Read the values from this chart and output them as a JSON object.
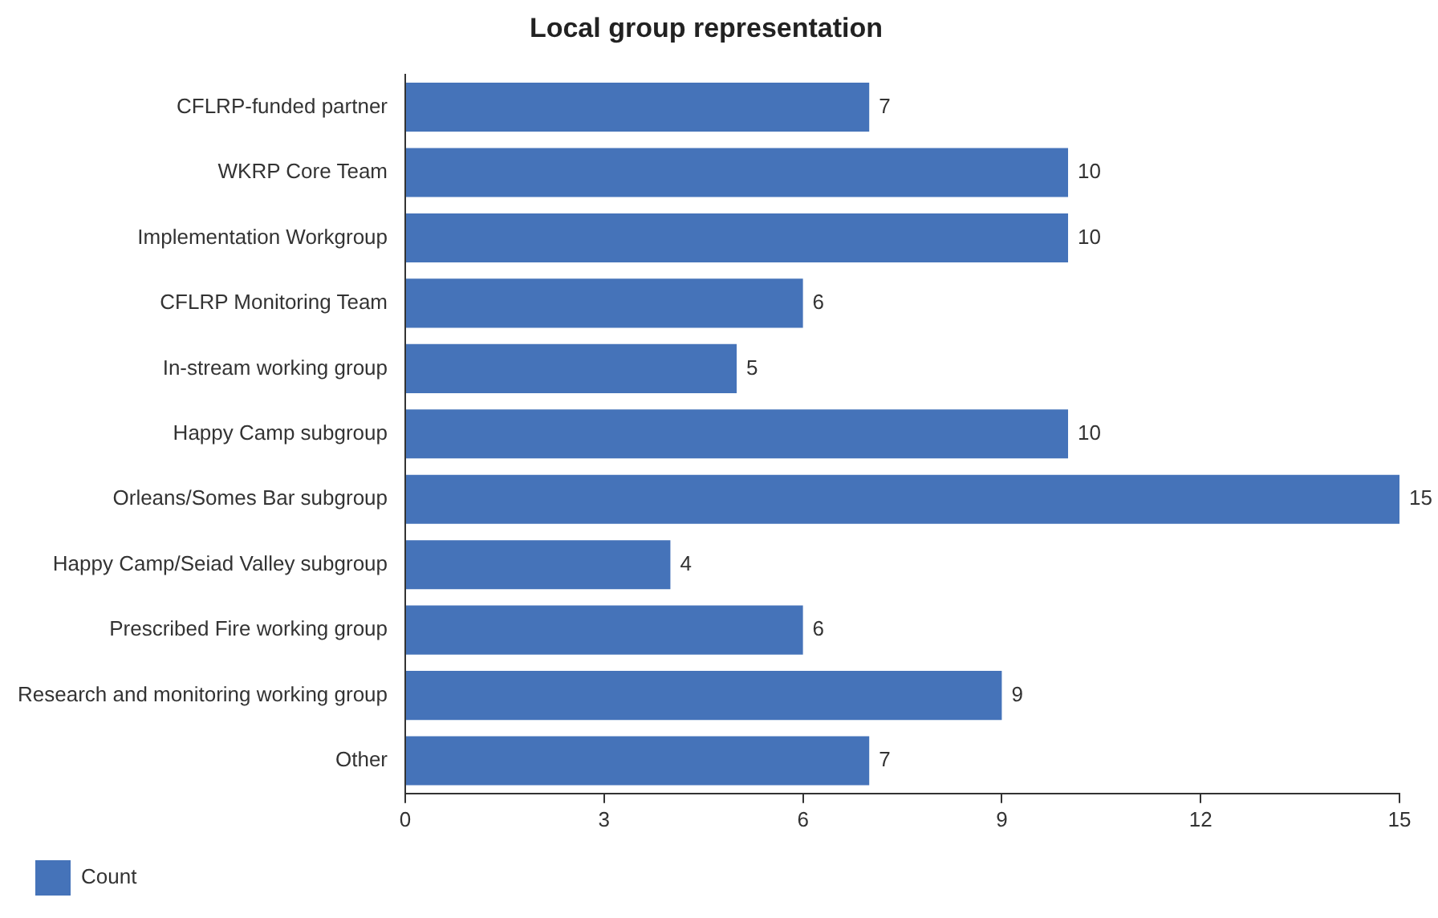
{
  "chart_data": {
    "type": "bar",
    "orientation": "horizontal",
    "title": "Local group representation",
    "categories": [
      "CFLRP-funded partner",
      "WKRP Core Team",
      "Implementation Workgroup",
      "CFLRP Monitoring Team",
      "In-stream working group",
      "Happy Camp subgroup",
      "Orleans/Somes Bar subgroup",
      "Happy Camp/Seiad Valley subgroup",
      "Prescribed Fire working group",
      "Research and monitoring working group",
      "Other"
    ],
    "series": [
      {
        "name": "Count",
        "color": "#4573b9",
        "values": [
          7,
          10,
          10,
          6,
          5,
          10,
          15,
          4,
          6,
          9,
          7
        ]
      }
    ],
    "xlim": [
      0,
      15
    ],
    "xticks": [
      0,
      3,
      6,
      9,
      12,
      15
    ],
    "grid": false,
    "legend": "bottom left",
    "data_labels": true
  }
}
